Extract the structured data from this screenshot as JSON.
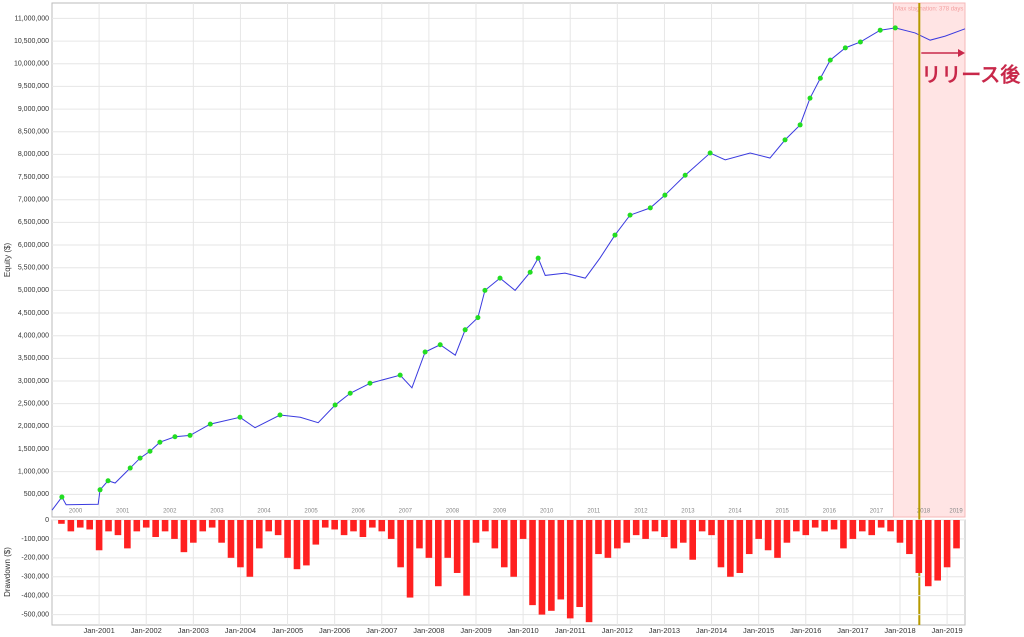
{
  "chart_data": [
    {
      "type": "line",
      "ylabel": "Equity ($)",
      "xlim": [
        2000,
        2019.38
      ],
      "ylim": [
        0,
        11340000
      ],
      "yticks": [
        {
          "value": 500000,
          "label": "500,000"
        },
        {
          "value": 1000000,
          "label": "1,000,000"
        },
        {
          "value": 1500000,
          "label": "1,500,000"
        },
        {
          "value": 2000000,
          "label": "2,000,000"
        },
        {
          "value": 2500000,
          "label": "2,500,000"
        },
        {
          "value": 3000000,
          "label": "3,000,000"
        },
        {
          "value": 3500000,
          "label": "3,500,000"
        },
        {
          "value": 4000000,
          "label": "4,000,000"
        },
        {
          "value": 4500000,
          "label": "4,500,000"
        },
        {
          "value": 5000000,
          "label": "5,000,000"
        },
        {
          "value": 5500000,
          "label": "5,500,000"
        },
        {
          "value": 6000000,
          "label": "6,000,000"
        },
        {
          "value": 6500000,
          "label": "6,500,000"
        },
        {
          "value": 7000000,
          "label": "7,000,000"
        },
        {
          "value": 7500000,
          "label": "7,500,000"
        },
        {
          "value": 8000000,
          "label": "8,000,000"
        },
        {
          "value": 8500000,
          "label": "8,500,000"
        },
        {
          "value": 9000000,
          "label": "9,000,000"
        },
        {
          "value": 9500000,
          "label": "9,500,000"
        },
        {
          "value": 10000000,
          "label": "10,000,000"
        },
        {
          "value": 10500000,
          "label": "10,500,000"
        },
        {
          "value": 11000000,
          "label": "11,000,000"
        }
      ],
      "year_labels": [
        {
          "value": 2000.5,
          "label": "2000"
        },
        {
          "value": 2001.5,
          "label": "2001"
        },
        {
          "value": 2002.5,
          "label": "2002"
        },
        {
          "value": 2003.5,
          "label": "2003"
        },
        {
          "value": 2004.5,
          "label": "2004"
        },
        {
          "value": 2005.5,
          "label": "2005"
        },
        {
          "value": 2006.5,
          "label": "2006"
        },
        {
          "value": 2007.5,
          "label": "2007"
        },
        {
          "value": 2008.5,
          "label": "2008"
        },
        {
          "value": 2009.5,
          "label": "2009"
        },
        {
          "value": 2010.5,
          "label": "2010"
        },
        {
          "value": 2011.5,
          "label": "2011"
        },
        {
          "value": 2012.5,
          "label": "2012"
        },
        {
          "value": 2013.5,
          "label": "2013"
        },
        {
          "value": 2014.5,
          "label": "2014"
        },
        {
          "value": 2015.5,
          "label": "2015"
        },
        {
          "value": 2016.5,
          "label": "2016"
        },
        {
          "value": 2017.5,
          "label": "2017"
        },
        {
          "value": 2018.5,
          "label": "2018"
        },
        {
          "value": 2019.19,
          "label": "2019"
        }
      ],
      "x": [
        2000.0,
        2000.21,
        2000.3,
        2000.98,
        2001.02,
        2001.19,
        2001.34,
        2001.66,
        2001.87,
        2002.08,
        2002.29,
        2002.61,
        2002.93,
        2003.36,
        2003.99,
        2004.31,
        2004.84,
        2005.27,
        2005.65,
        2006.01,
        2006.33,
        2006.75,
        2007.39,
        2007.64,
        2007.92,
        2008.24,
        2008.56,
        2008.77,
        2009.04,
        2009.19,
        2009.51,
        2009.83,
        2010.15,
        2010.32,
        2010.47,
        2010.89,
        2011.32,
        2011.63,
        2011.95,
        2012.27,
        2012.7,
        2013.01,
        2013.44,
        2013.97,
        2014.29,
        2014.82,
        2015.24,
        2015.56,
        2015.88,
        2016.09,
        2016.31,
        2016.52,
        2016.84,
        2017.16,
        2017.58,
        2017.9,
        2018.32,
        2018.64,
        2018.96,
        2019.38
      ],
      "series": [
        {
          "name": "Equity",
          "color": "#3a3adf",
          "values": [
            150000,
            440000,
            270000,
            280000,
            600000,
            800000,
            750000,
            1080000,
            1300000,
            1450000,
            1650000,
            1770000,
            1800000,
            2050000,
            2200000,
            1970000,
            2250000,
            2200000,
            2080000,
            2470000,
            2730000,
            2950000,
            3130000,
            2850000,
            3640000,
            3800000,
            3570000,
            4130000,
            4400000,
            5000000,
            5270000,
            5000000,
            5400000,
            5710000,
            5330000,
            5380000,
            5270000,
            5710000,
            6220000,
            6660000,
            6820000,
            7100000,
            7540000,
            8030000,
            7880000,
            8030000,
            7920000,
            8320000,
            8650000,
            9240000,
            9680000,
            10080000,
            10350000,
            10480000,
            10740000,
            10790000,
            10680000,
            10520000,
            10610000,
            10770000
          ]
        }
      ],
      "new_high_color": "#22dd22",
      "grid": true,
      "stagnation": {
        "start": 2017.86,
        "end": 2019.38,
        "label": "Max stagnation: 378 days",
        "color": "#ffe4e4"
      },
      "release": {
        "x": 2018.41,
        "color": "#b59a00",
        "label": "リリース後",
        "label_color": "#c8284a"
      }
    },
    {
      "type": "bar",
      "ylabel": "Drawdown ($)",
      "xlim": [
        2000,
        2019.38
      ],
      "ylim": [
        -555000,
        0
      ],
      "yticks": [
        0,
        {
          "value": -100000,
          "label": "-100,000"
        },
        {
          "value": -200000,
          "label": "-200,000"
        },
        {
          "value": -300000,
          "label": "-300,000"
        },
        {
          "value": -400000,
          "label": "-400,000"
        },
        {
          "value": -500000,
          "label": "-500,000"
        }
      ],
      "xticks": [
        {
          "value": 2001,
          "label": "Jan-2001"
        },
        {
          "value": 2002,
          "label": "Jan-2002"
        },
        {
          "value": 2003,
          "label": "Jan-2003"
        },
        {
          "value": 2004,
          "label": "Jan-2004"
        },
        {
          "value": 2005,
          "label": "Jan-2005"
        },
        {
          "value": 2006,
          "label": "Jan-2006"
        },
        {
          "value": 2007,
          "label": "Jan-2007"
        },
        {
          "value": 2008,
          "label": "Jan-2008"
        },
        {
          "value": 2009,
          "label": "Jan-2009"
        },
        {
          "value": 2010,
          "label": "Jan-2010"
        },
        {
          "value": 2011,
          "label": "Jan-2011"
        },
        {
          "value": 2012,
          "label": "Jan-2012"
        },
        {
          "value": 2013,
          "label": "Jan-2013"
        },
        {
          "value": 2014,
          "label": "Jan-2014"
        },
        {
          "value": 2015,
          "label": "Jan-2015"
        },
        {
          "value": 2016,
          "label": "Jan-2016"
        },
        {
          "value": 2017,
          "label": "Jan-2017"
        },
        {
          "value": 2018,
          "label": "Jan-2018"
        },
        {
          "value": 2019,
          "label": "Jan-2019"
        }
      ],
      "x": [
        2000.0,
        2000.2,
        2000.4,
        2000.6,
        2000.8,
        2001.0,
        2001.2,
        2001.4,
        2001.6,
        2001.8,
        2002.0,
        2002.2,
        2002.4,
        2002.6,
        2002.8,
        2003.0,
        2003.2,
        2003.4,
        2003.6,
        2003.8,
        2004.0,
        2004.2,
        2004.4,
        2004.6,
        2004.8,
        2005.0,
        2005.2,
        2005.4,
        2005.6,
        2005.8,
        2006.0,
        2006.2,
        2006.4,
        2006.6,
        2006.8,
        2007.0,
        2007.2,
        2007.4,
        2007.6,
        2007.8,
        2008.0,
        2008.2,
        2008.4,
        2008.6,
        2008.8,
        2009.0,
        2009.2,
        2009.4,
        2009.6,
        2009.8,
        2010.0,
        2010.2,
        2010.4,
        2010.6,
        2010.8,
        2011.0,
        2011.2,
        2011.4,
        2011.6,
        2011.8,
        2012.0,
        2012.2,
        2012.4,
        2012.6,
        2012.8,
        2013.0,
        2013.2,
        2013.4,
        2013.6,
        2013.8,
        2014.0,
        2014.2,
        2014.4,
        2014.6,
        2014.8,
        2015.0,
        2015.2,
        2015.4,
        2015.6,
        2015.8,
        2016.0,
        2016.2,
        2016.4,
        2016.6,
        2016.8,
        2017.0,
        2017.2,
        2017.4,
        2017.6,
        2017.8,
        2018.0,
        2018.2,
        2018.4,
        2018.6,
        2018.8,
        2019.0,
        2019.2
      ],
      "series": [
        {
          "name": "Drawdown",
          "color": "#ff2020",
          "values": [
            0,
            -20000,
            -60000,
            -40000,
            -50000,
            -160000,
            -60000,
            -80000,
            -150000,
            -60000,
            -40000,
            -90000,
            -60000,
            -100000,
            -170000,
            -120000,
            -60000,
            -40000,
            -120000,
            -200000,
            -250000,
            -300000,
            -150000,
            -60000,
            -80000,
            -200000,
            -260000,
            -240000,
            -130000,
            -40000,
            -50000,
            -80000,
            -60000,
            -90000,
            -40000,
            -60000,
            -100000,
            -250000,
            -410000,
            -150000,
            -200000,
            -350000,
            -200000,
            -280000,
            -400000,
            -120000,
            -60000,
            -150000,
            -250000,
            -300000,
            -100000,
            -450000,
            -500000,
            -480000,
            -420000,
            -520000,
            -460000,
            -540000,
            -180000,
            -200000,
            -150000,
            -120000,
            -80000,
            -100000,
            -60000,
            -90000,
            -150000,
            -120000,
            -210000,
            -60000,
            -80000,
            -250000,
            -300000,
            -280000,
            -180000,
            -100000,
            -160000,
            -200000,
            -120000,
            -60000,
            -80000,
            -40000,
            -60000,
            -50000,
            -150000,
            -100000,
            -60000,
            -80000,
            -40000,
            -60000,
            -120000,
            -180000,
            -280000,
            -350000,
            -320000,
            -250000,
            -150000
          ]
        }
      ],
      "grid": true
    }
  ]
}
